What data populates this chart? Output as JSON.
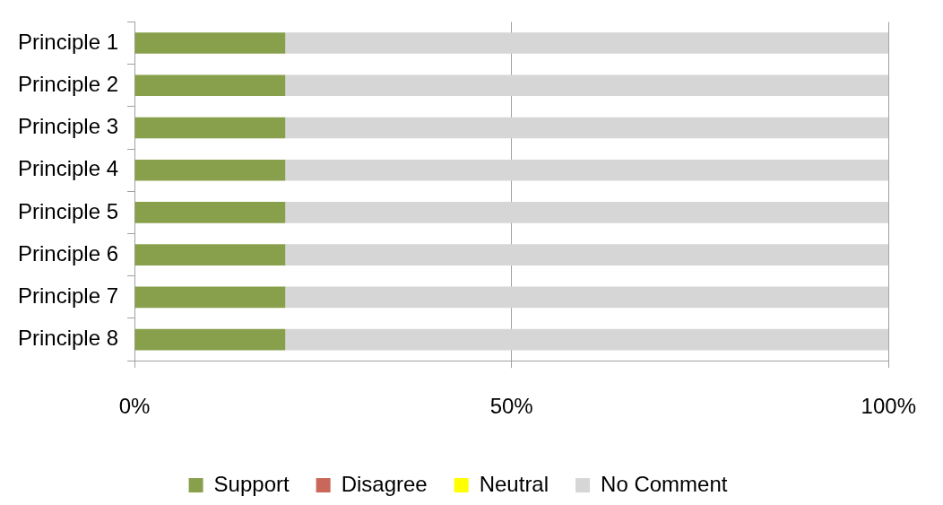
{
  "chart_data": {
    "type": "bar",
    "orientation": "horizontal",
    "stacked": true,
    "categories": [
      "Principle 1",
      "Principle 2",
      "Principle 3",
      "Principle 4",
      "Principle 5",
      "Principle 6",
      "Principle 7",
      "Principle 8"
    ],
    "series": [
      {
        "name": "Support",
        "color": "#88a04c",
        "values": [
          20,
          20,
          20,
          20,
          20,
          20,
          20,
          20
        ]
      },
      {
        "name": "Disagree",
        "color": "#c9675a",
        "values": [
          0,
          0,
          0,
          0,
          0,
          0,
          0,
          0
        ]
      },
      {
        "name": "Neutral",
        "color": "#ffff00",
        "values": [
          0,
          0,
          0,
          0,
          0,
          0,
          0,
          0
        ]
      },
      {
        "name": "No Comment",
        "color": "#d6d6d6",
        "values": [
          80,
          80,
          80,
          80,
          80,
          80,
          80,
          80
        ]
      }
    ],
    "xlim": [
      0,
      100
    ],
    "xticks": [
      {
        "value": 0,
        "label": "0%"
      },
      {
        "value": 50,
        "label": "50%"
      },
      {
        "value": 100,
        "label": "100%"
      }
    ],
    "grid": "x",
    "legend": "bottom"
  }
}
